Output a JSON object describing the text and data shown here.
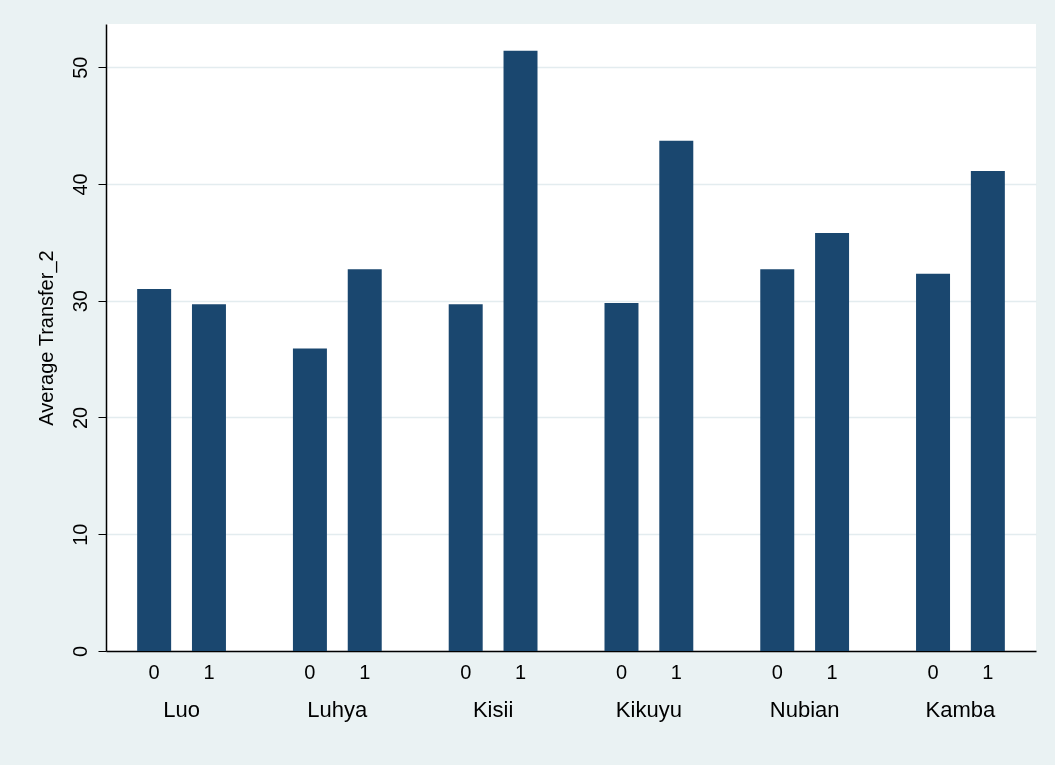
{
  "chart_data": {
    "type": "bar",
    "ylabel": "Average Transfer_2",
    "categories": [
      "Luo",
      "Luhya",
      "Kisii",
      "Kikuyu",
      "Nubian",
      "Kamba"
    ],
    "series": [
      {
        "name": "0",
        "color": "#1a476f",
        "values": [
          31.0,
          25.9,
          29.7,
          29.8,
          32.7,
          32.3
        ]
      },
      {
        "name": "1",
        "color": "#1a476f",
        "values": [
          29.7,
          32.7,
          51.4,
          43.7,
          35.8,
          41.1
        ]
      }
    ],
    "ylim": [
      0,
      53.7
    ],
    "yticks": [
      0,
      10,
      20,
      30,
      40,
      50
    ],
    "grid": true
  }
}
